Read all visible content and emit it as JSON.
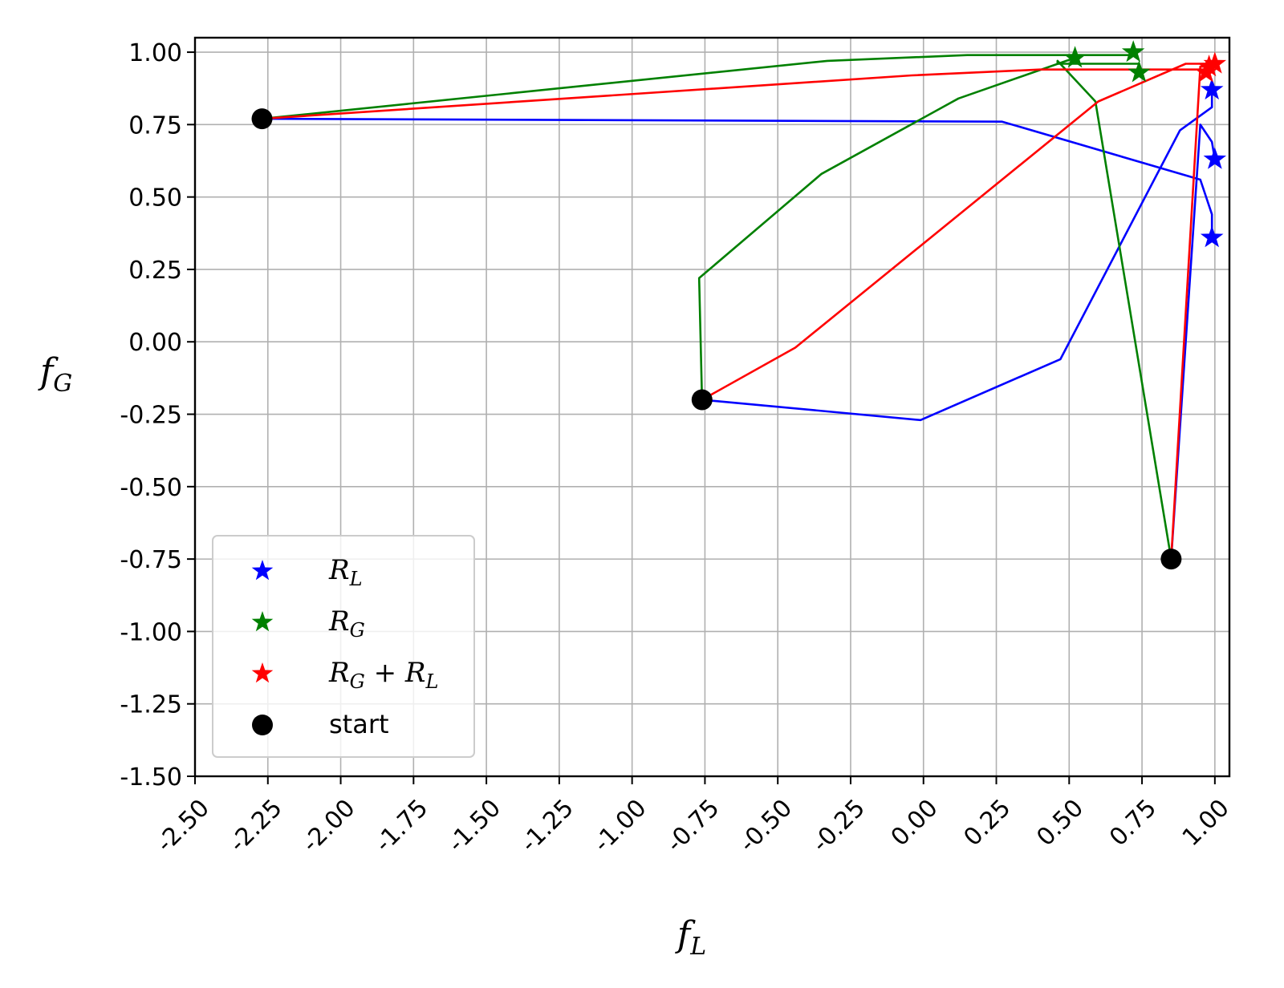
{
  "chart_data": {
    "type": "line",
    "xlabel": "f_L",
    "ylabel": "f_G",
    "xlim": [
      -2.5,
      1.05
    ],
    "ylim": [
      -1.5,
      1.05
    ],
    "grid": true,
    "legend_placement": "lower-left",
    "xticks": [
      "-2.50",
      "-2.25",
      "-2.00",
      "-1.75",
      "-1.50",
      "-1.25",
      "-1.00",
      "-0.75",
      "-0.50",
      "-0.25",
      "0.00",
      "0.25",
      "0.50",
      "0.75",
      "1.00"
    ],
    "yticks": [
      "1.00",
      "0.75",
      "0.50",
      "0.25",
      "0.00",
      "-0.25",
      "-0.50",
      "-0.75",
      "-1.00",
      "-1.25",
      "-1.50"
    ],
    "legend": [
      {
        "key": "RL",
        "marker": "star",
        "color": "#0000ff",
        "label": "R_L"
      },
      {
        "key": "RG",
        "marker": "star",
        "color": "#008000",
        "label": "R_G"
      },
      {
        "key": "RGL",
        "marker": "star",
        "color": "#ff0000",
        "label": "R_G + R_L"
      },
      {
        "key": "start",
        "marker": "circle",
        "color": "#000000",
        "label": "start"
      }
    ],
    "series": [
      {
        "key": "RL",
        "color": "#0000ff",
        "points": [
          [
            -2.27,
            0.77
          ],
          [
            0.27,
            0.76
          ],
          [
            0.95,
            0.56
          ],
          [
            0.99,
            0.44
          ],
          [
            0.99,
            0.36
          ]
        ]
      },
      {
        "key": "RL",
        "color": "#0000ff",
        "points": [
          [
            -0.76,
            -0.2
          ],
          [
            -0.01,
            -0.27
          ],
          [
            0.47,
            -0.06
          ],
          [
            0.88,
            0.73
          ],
          [
            0.99,
            0.81
          ],
          [
            0.99,
            0.87
          ]
        ]
      },
      {
        "key": "RL",
        "color": "#0000ff",
        "points": [
          [
            0.85,
            -0.75
          ],
          [
            0.95,
            0.75
          ],
          [
            0.99,
            0.69
          ],
          [
            1.0,
            0.63
          ]
        ]
      },
      {
        "key": "RG",
        "color": "#008000",
        "points": [
          [
            -2.27,
            0.77
          ],
          [
            -0.33,
            0.97
          ],
          [
            0.15,
            0.99
          ],
          [
            0.72,
            0.99
          ],
          [
            0.72,
            1.0
          ]
        ]
      },
      {
        "key": "RG",
        "color": "#008000",
        "points": [
          [
            -0.76,
            -0.2
          ],
          [
            -0.77,
            0.22
          ],
          [
            -0.35,
            0.58
          ],
          [
            0.12,
            0.84
          ],
          [
            0.49,
            0.97
          ],
          [
            0.52,
            0.98
          ]
        ]
      },
      {
        "key": "RG",
        "color": "#008000",
        "points": [
          [
            0.85,
            -0.75
          ],
          [
            0.59,
            0.83
          ],
          [
            0.46,
            0.97
          ],
          [
            0.46,
            0.96
          ],
          [
            0.74,
            0.96
          ],
          [
            0.74,
            0.93
          ]
        ]
      },
      {
        "key": "RGL",
        "color": "#ff0000",
        "points": [
          [
            -2.27,
            0.77
          ],
          [
            -0.04,
            0.92
          ],
          [
            0.4,
            0.94
          ],
          [
            0.97,
            0.94
          ],
          [
            0.97,
            0.93
          ]
        ]
      },
      {
        "key": "RGL",
        "color": "#ff0000",
        "points": [
          [
            -0.76,
            -0.2
          ],
          [
            -0.44,
            -0.02
          ],
          [
            0.6,
            0.83
          ],
          [
            0.9,
            0.96
          ],
          [
            1.0,
            0.96
          ]
        ]
      },
      {
        "key": "RGL",
        "color": "#ff0000",
        "points": [
          [
            0.85,
            -0.75
          ],
          [
            0.95,
            0.95
          ],
          [
            0.98,
            0.95
          ]
        ]
      }
    ],
    "end_markers": [
      {
        "key": "RL",
        "color": "#0000ff",
        "x": 0.99,
        "y": 0.36
      },
      {
        "key": "RL",
        "color": "#0000ff",
        "x": 0.99,
        "y": 0.87
      },
      {
        "key": "RL",
        "color": "#0000ff",
        "x": 1.0,
        "y": 0.63
      },
      {
        "key": "RG",
        "color": "#008000",
        "x": 0.72,
        "y": 1.0
      },
      {
        "key": "RG",
        "color": "#008000",
        "x": 0.52,
        "y": 0.98
      },
      {
        "key": "RG",
        "color": "#008000",
        "x": 0.74,
        "y": 0.93
      },
      {
        "key": "RGL",
        "color": "#ff0000",
        "x": 0.97,
        "y": 0.93
      },
      {
        "key": "RGL",
        "color": "#ff0000",
        "x": 1.0,
        "y": 0.96
      },
      {
        "key": "RGL",
        "color": "#ff0000",
        "x": 0.98,
        "y": 0.95
      }
    ],
    "start_points": [
      {
        "x": -2.27,
        "y": 0.77
      },
      {
        "x": -0.76,
        "y": -0.2
      },
      {
        "x": 0.85,
        "y": -0.75
      }
    ]
  }
}
